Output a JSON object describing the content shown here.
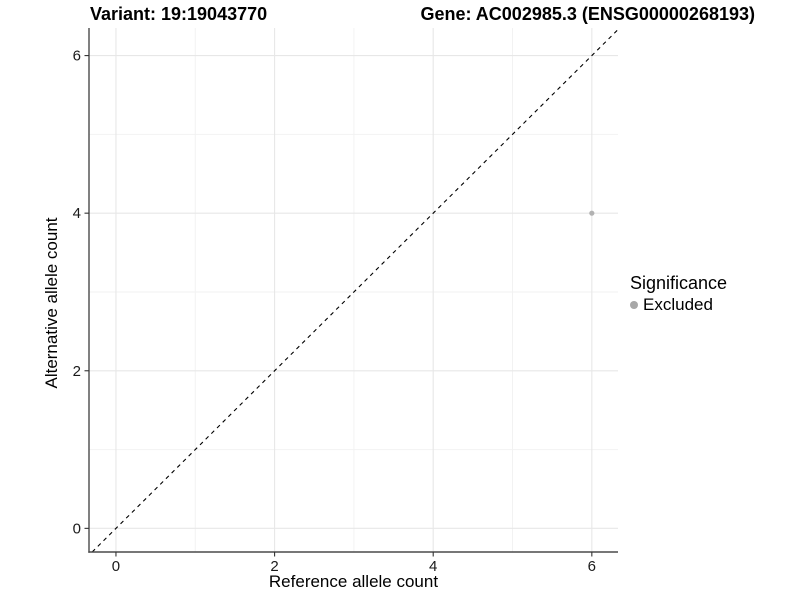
{
  "chart_data": {
    "type": "scatter",
    "title_left": "Variant: 19:19043770",
    "title_right": "Gene: AC002985.3 (ENSG00000268193)",
    "xlabel": "Reference allele count",
    "ylabel": "Alternative allele count",
    "xlim": [
      -0.34,
      6.33
    ],
    "ylim": [
      -0.3,
      6.35
    ],
    "xticks": [
      0,
      2,
      4,
      6
    ],
    "yticks": [
      0,
      2,
      4,
      6
    ],
    "minor_xticks": [
      1,
      3,
      5
    ],
    "minor_yticks": [
      1,
      3,
      5
    ],
    "grid": "major+minor",
    "reference_line": {
      "type": "identity",
      "style": "dashed",
      "color": "#000000"
    },
    "series": [
      {
        "name": "Excluded",
        "color": "#b2b2b2",
        "point_radius": 2.6,
        "points": [
          {
            "x": 6,
            "y": 4
          }
        ]
      }
    ],
    "legend": {
      "title": "Significance",
      "position": "right",
      "entries": [
        {
          "label": "Excluded",
          "color": "#a8a8a8"
        }
      ]
    },
    "colors": {
      "grid_major": "#e7e7e7",
      "grid_minor": "#f2f2f2",
      "axis_line": "#4a4a4a",
      "tick_mark": "#333333",
      "tick_label": "#1a1a1a",
      "background": "#ffffff"
    }
  }
}
